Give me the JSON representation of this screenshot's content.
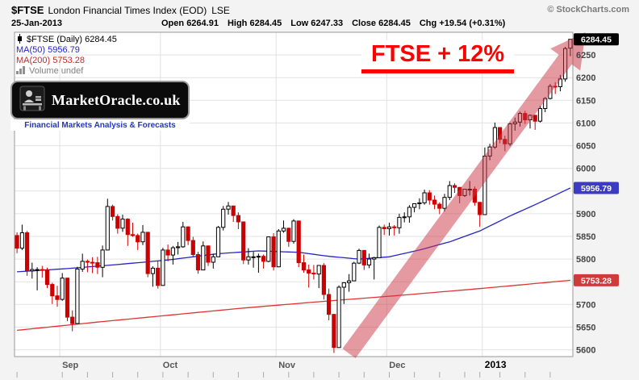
{
  "header": {
    "symbol": "$FTSE",
    "title": "London Financial Times Index (EOD)",
    "exchange": "LSE",
    "copyright": "© StockCharts.com",
    "date": "25-Jan-2013",
    "quote": {
      "open_label": "Open",
      "open": "6264.91",
      "high_label": "High",
      "high": "6284.45",
      "low_label": "Low",
      "low": "6247.33",
      "close_label": "Close",
      "close": "6284.45",
      "chg_label": "Chg",
      "chg": "+19.54 (+0.31%)"
    }
  },
  "legend": {
    "rows": [
      {
        "label": "$FTSE (Daily) 6284.45",
        "color": "#000000"
      },
      {
        "label": "MA(50) 5956.79",
        "color": "#2424c8"
      },
      {
        "label": "MA(200) 5753.28",
        "color": "#cc2626"
      },
      {
        "label": "Volume undef",
        "color": "#808080"
      }
    ]
  },
  "logo": {
    "title": "MarketOracle.co.uk",
    "tagline": "Financial Markets Analysis & Forecasts"
  },
  "annotation": {
    "label": {
      "text": "FTSE + 12%",
      "color": "#ff0000"
    },
    "arrow": {
      "color": "#cc3344",
      "opacity": 0.5,
      "from": {
        "index": 66,
        "price": 5592
      },
      "to": {
        "index": 113,
        "price": 6300
      }
    }
  },
  "chart_data": {
    "type": "candlestick",
    "title": "$FTSE London Financial Times Index (EOD) LSE",
    "ylim": [
      5585,
      6300
    ],
    "grid": true,
    "up_color": "#000000",
    "down_color": "#cc0000",
    "y_gridlines": [
      5600,
      5650,
      5700,
      5750,
      5800,
      5850,
      5900,
      5950,
      6000,
      6050,
      6100,
      6150,
      6200,
      6250
    ],
    "y_ticks": [
      6250,
      6200,
      6150,
      6100,
      6050,
      6000,
      5900,
      5850,
      5800,
      5700,
      5650,
      5600
    ],
    "y_axis_boxes": [
      {
        "price": 6284.45,
        "text": "6284.45",
        "bg": "#000000"
      },
      {
        "price": 5956.79,
        "text": "5956.79",
        "bg": "#3b3bc4"
      },
      {
        "price": 5753.28,
        "text": "5753.28",
        "bg": "#cf3b3b"
      }
    ],
    "x_labels": [
      {
        "index": 9,
        "text": "Sep"
      },
      {
        "index": 29,
        "text": "Oct"
      },
      {
        "index": 52,
        "text": "Nov"
      },
      {
        "index": 74,
        "text": "Dec"
      },
      {
        "index": 93,
        "text": "2013",
        "emphasis": true
      }
    ],
    "ma50": {
      "color": "#2424c8",
      "anchors": [
        [
          0,
          5772
        ],
        [
          10,
          5779
        ],
        [
          20,
          5788
        ],
        [
          30,
          5798
        ],
        [
          40,
          5812
        ],
        [
          48,
          5818
        ],
        [
          56,
          5815
        ],
        [
          62,
          5806
        ],
        [
          68,
          5800
        ],
        [
          74,
          5805
        ],
        [
          80,
          5820
        ],
        [
          86,
          5838
        ],
        [
          92,
          5862
        ],
        [
          98,
          5895
        ],
        [
          104,
          5925
        ],
        [
          110,
          5956.79
        ]
      ]
    },
    "ma200": {
      "color": "#e03232",
      "anchors": [
        [
          0,
          5643
        ],
        [
          15,
          5660
        ],
        [
          30,
          5676
        ],
        [
          45,
          5692
        ],
        [
          60,
          5706
        ],
        [
          75,
          5719
        ],
        [
          90,
          5733
        ],
        [
          100,
          5743
        ],
        [
          110,
          5753.28
        ]
      ]
    },
    "candles": [
      [
        "2012-08-20",
        5852,
        5859,
        5813,
        5824
      ],
      [
        "2012-08-21",
        5824,
        5876,
        5820,
        5858
      ],
      [
        "2012-08-22",
        5858,
        5862,
        5763,
        5774
      ],
      [
        "2012-08-23",
        5774,
        5792,
        5757,
        5777
      ],
      [
        "2012-08-24",
        5777,
        5782,
        5731,
        5777
      ],
      [
        "2012-08-28",
        5777,
        5785,
        5759,
        5776
      ],
      [
        "2012-08-29",
        5776,
        5781,
        5736,
        5744
      ],
      [
        "2012-08-30",
        5744,
        5748,
        5701,
        5719
      ],
      [
        "2012-08-31",
        5719,
        5741,
        5695,
        5711
      ],
      [
        "2012-09-03",
        5711,
        5769,
        5708,
        5758
      ],
      [
        "2012-09-04",
        5758,
        5759,
        5663,
        5672
      ],
      [
        "2012-09-05",
        5672,
        5687,
        5641,
        5658
      ],
      [
        "2012-09-06",
        5658,
        5783,
        5657,
        5778
      ],
      [
        "2012-09-07",
        5778,
        5812,
        5772,
        5795
      ],
      [
        "2012-09-10",
        5795,
        5799,
        5771,
        5793
      ],
      [
        "2012-09-11",
        5793,
        5804,
        5769,
        5792
      ],
      [
        "2012-09-12",
        5792,
        5805,
        5767,
        5782
      ],
      [
        "2012-09-13",
        5782,
        5830,
        5760,
        5820
      ],
      [
        "2012-09-14",
        5820,
        5933,
        5820,
        5916
      ],
      [
        "2012-09-17",
        5916,
        5920,
        5885,
        5894
      ],
      [
        "2012-09-18",
        5894,
        5899,
        5856,
        5868
      ],
      [
        "2012-09-19",
        5868,
        5898,
        5860,
        5888
      ],
      [
        "2012-09-20",
        5888,
        5890,
        5829,
        5854
      ],
      [
        "2012-09-21",
        5854,
        5880,
        5849,
        5852
      ],
      [
        "2012-09-24",
        5852,
        5856,
        5820,
        5838
      ],
      [
        "2012-09-25",
        5838,
        5875,
        5831,
        5859
      ],
      [
        "2012-09-26",
        5859,
        5860,
        5760,
        5768
      ],
      [
        "2012-09-27",
        5768,
        5784,
        5739,
        5780
      ],
      [
        "2012-09-28",
        5780,
        5797,
        5735,
        5742
      ],
      [
        "2012-10-01",
        5742,
        5825,
        5742,
        5820
      ],
      [
        "2012-10-02",
        5820,
        5832,
        5795,
        5809
      ],
      [
        "2012-10-03",
        5809,
        5829,
        5788,
        5825
      ],
      [
        "2012-10-04",
        5825,
        5838,
        5810,
        5827
      ],
      [
        "2012-10-05",
        5827,
        5882,
        5825,
        5871
      ],
      [
        "2012-10-08",
        5871,
        5872,
        5831,
        5841
      ],
      [
        "2012-10-09",
        5841,
        5849,
        5805,
        5810
      ],
      [
        "2012-10-10",
        5810,
        5816,
        5768,
        5776
      ],
      [
        "2012-10-11",
        5776,
        5839,
        5776,
        5829
      ],
      [
        "2012-10-12",
        5829,
        5830,
        5785,
        5793
      ],
      [
        "2012-10-15",
        5793,
        5812,
        5779,
        5805
      ],
      [
        "2012-10-16",
        5805,
        5873,
        5805,
        5870
      ],
      [
        "2012-10-17",
        5870,
        5917,
        5863,
        5910
      ],
      [
        "2012-10-18",
        5910,
        5926,
        5898,
        5917
      ],
      [
        "2012-10-19",
        5917,
        5918,
        5882,
        5896
      ],
      [
        "2012-10-22",
        5896,
        5903,
        5866,
        5882
      ],
      [
        "2012-10-23",
        5882,
        5883,
        5789,
        5798
      ],
      [
        "2012-10-24",
        5798,
        5824,
        5788,
        5805
      ],
      [
        "2012-10-25",
        5805,
        5816,
        5781,
        5805
      ],
      [
        "2012-10-26",
        5805,
        5812,
        5770,
        5806
      ],
      [
        "2012-10-29",
        5806,
        5810,
        5779,
        5795
      ],
      [
        "2012-10-30",
        5795,
        5849,
        5793,
        5849
      ],
      [
        "2012-10-31",
        5849,
        5857,
        5775,
        5783
      ],
      [
        "2012-11-01",
        5783,
        5866,
        5782,
        5862
      ],
      [
        "2012-11-02",
        5862,
        5885,
        5858,
        5868
      ],
      [
        "2012-11-05",
        5868,
        5869,
        5827,
        5839
      ],
      [
        "2012-11-06",
        5839,
        5888,
        5834,
        5884
      ],
      [
        "2012-11-07",
        5884,
        5885,
        5782,
        5792
      ],
      [
        "2012-11-08",
        5792,
        5810,
        5770,
        5776
      ],
      [
        "2012-11-09",
        5776,
        5788,
        5737,
        5769
      ],
      [
        "2012-11-12",
        5769,
        5787,
        5755,
        5767
      ],
      [
        "2012-11-13",
        5767,
        5786,
        5736,
        5786
      ],
      [
        "2012-11-14",
        5786,
        5791,
        5711,
        5722
      ],
      [
        "2012-11-15",
        5722,
        5735,
        5665,
        5678
      ],
      [
        "2012-11-16",
        5678,
        5679,
        5593,
        5605
      ],
      [
        "2012-11-19",
        5605,
        5742,
        5605,
        5738
      ],
      [
        "2012-11-20",
        5738,
        5749,
        5701,
        5748
      ],
      [
        "2012-11-21",
        5748,
        5767,
        5728,
        5752
      ],
      [
        "2012-11-22",
        5752,
        5794,
        5752,
        5791
      ],
      [
        "2012-11-23",
        5791,
        5823,
        5789,
        5819
      ],
      [
        "2012-11-26",
        5819,
        5820,
        5776,
        5787
      ],
      [
        "2012-11-27",
        5787,
        5812,
        5780,
        5800
      ],
      [
        "2012-11-28",
        5800,
        5805,
        5755,
        5803
      ],
      [
        "2012-11-29",
        5803,
        5874,
        5803,
        5870
      ],
      [
        "2012-11-30",
        5870,
        5876,
        5853,
        5867
      ],
      [
        "2012-12-03",
        5867,
        5880,
        5852,
        5871
      ],
      [
        "2012-12-04",
        5871,
        5875,
        5852,
        5869
      ],
      [
        "2012-12-05",
        5869,
        5900,
        5856,
        5892
      ],
      [
        "2012-12-06",
        5892,
        5903,
        5881,
        5893
      ],
      [
        "2012-12-07",
        5893,
        5919,
        5880,
        5914
      ],
      [
        "2012-12-10",
        5914,
        5922,
        5903,
        5922
      ],
      [
        "2012-12-11",
        5922,
        5934,
        5910,
        5924
      ],
      [
        "2012-12-12",
        5924,
        5953,
        5920,
        5946
      ],
      [
        "2012-12-13",
        5946,
        5952,
        5920,
        5930
      ],
      [
        "2012-12-14",
        5930,
        5940,
        5910,
        5921
      ],
      [
        "2012-12-17",
        5921,
        5925,
        5899,
        5912
      ],
      [
        "2012-12-18",
        5912,
        5944,
        5905,
        5936
      ],
      [
        "2012-12-19",
        5936,
        5972,
        5930,
        5962
      ],
      [
        "2012-12-20",
        5962,
        5967,
        5946,
        5958
      ],
      [
        "2012-12-21",
        5958,
        5959,
        5923,
        5940
      ],
      [
        "2012-12-24",
        5940,
        5954,
        5937,
        5954
      ],
      [
        "2012-12-27",
        5954,
        5972,
        5940,
        5954
      ],
      [
        "2012-12-28",
        5954,
        5960,
        5918,
        5925
      ],
      [
        "2012-12-31",
        5925,
        5926,
        5871,
        5898
      ],
      [
        "2013-01-02",
        5898,
        6046,
        5898,
        6027
      ],
      [
        "2013-01-03",
        6027,
        6054,
        6018,
        6047
      ],
      [
        "2013-01-04",
        6047,
        6101,
        6043,
        6090
      ],
      [
        "2013-01-07",
        6090,
        6091,
        6055,
        6064
      ],
      [
        "2013-01-08",
        6064,
        6072,
        6038,
        6054
      ],
      [
        "2013-01-09",
        6054,
        6101,
        6049,
        6098
      ],
      [
        "2013-01-10",
        6098,
        6112,
        6083,
        6102
      ],
      [
        "2013-01-11",
        6102,
        6125,
        6092,
        6121
      ],
      [
        "2013-01-14",
        6121,
        6127,
        6098,
        6107
      ],
      [
        "2013-01-15",
        6107,
        6119,
        6088,
        6117
      ],
      [
        "2013-01-16",
        6117,
        6118,
        6085,
        6104
      ],
      [
        "2013-01-17",
        6104,
        6138,
        6101,
        6132
      ],
      [
        "2013-01-18",
        6132,
        6157,
        6124,
        6154
      ],
      [
        "2013-01-21",
        6154,
        6186,
        6152,
        6181
      ],
      [
        "2013-01-22",
        6181,
        6190,
        6164,
        6180
      ],
      [
        "2013-01-23",
        6180,
        6206,
        6170,
        6197
      ],
      [
        "2013-01-24",
        6197,
        6268,
        6191,
        6264
      ],
      [
        "2013-01-25",
        6264.91,
        6284.45,
        6247.33,
        6284.45
      ]
    ]
  }
}
